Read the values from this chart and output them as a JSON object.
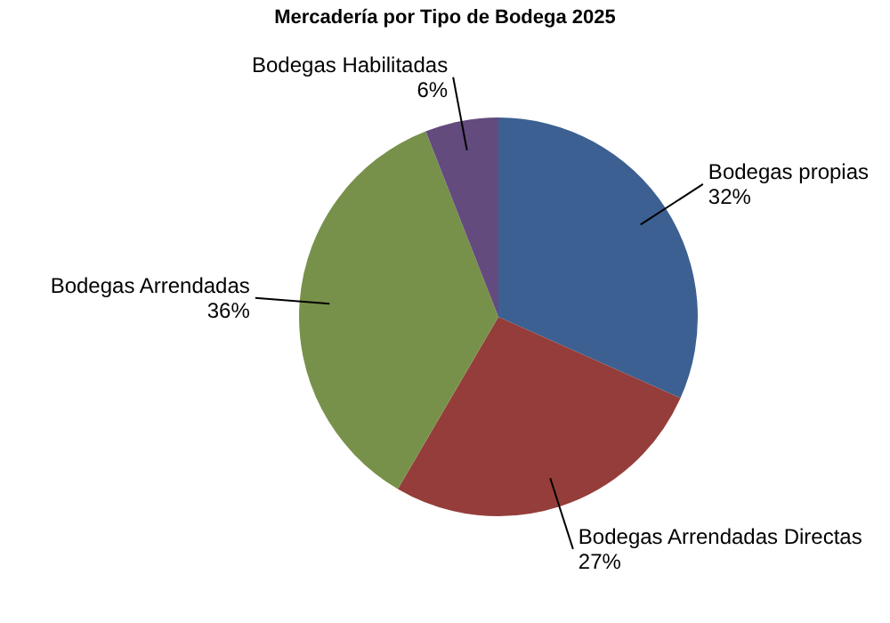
{
  "chart_data": {
    "type": "pie",
    "title": "Mercadería por Tipo de Bodega 2025",
    "categories": [
      "Bodegas propias",
      "Bodegas Arrendadas Directas",
      "Bodegas Arrendadas",
      "Bodegas Habilitadas"
    ],
    "values": [
      32,
      27,
      36,
      6
    ],
    "value_labels": [
      "32%",
      "27%",
      "36%",
      "6%"
    ],
    "colors": [
      "#3c6091",
      "#953d3a",
      "#78914a",
      "#634b7e"
    ],
    "legend": false
  }
}
